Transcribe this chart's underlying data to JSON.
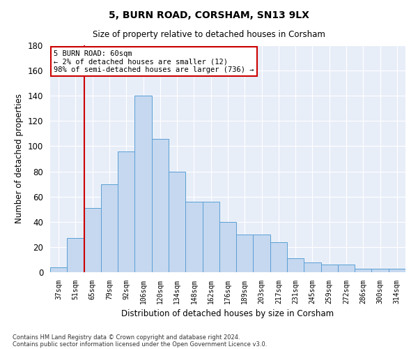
{
  "title1": "5, BURN ROAD, CORSHAM, SN13 9LX",
  "title2": "Size of property relative to detached houses in Corsham",
  "xlabel": "Distribution of detached houses by size in Corsham",
  "ylabel": "Number of detached properties",
  "categories": [
    "37sqm",
    "51sqm",
    "65sqm",
    "79sqm",
    "92sqm",
    "106sqm",
    "120sqm",
    "134sqm",
    "148sqm",
    "162sqm",
    "176sqm",
    "189sqm",
    "203sqm",
    "217sqm",
    "231sqm",
    "245sqm",
    "259sqm",
    "272sqm",
    "286sqm",
    "300sqm",
    "314sqm"
  ],
  "values": [
    4,
    27,
    51,
    70,
    96,
    140,
    106,
    80,
    56,
    56,
    40,
    30,
    30,
    24,
    11,
    8,
    6,
    6,
    3,
    3,
    3
  ],
  "bar_color": "#c5d8f0",
  "bar_edge_color": "#5a9fd4",
  "annotation_box_color": "#ffffff",
  "annotation_border_color": "#cc0000",
  "red_line_x": 1.5,
  "annotation_text_line1": "5 BURN ROAD: 60sqm",
  "annotation_text_line2": "← 2% of detached houses are smaller (12)",
  "annotation_text_line3": "98% of semi-detached houses are larger (736) →",
  "ylim": [
    0,
    180
  ],
  "yticks": [
    0,
    20,
    40,
    60,
    80,
    100,
    120,
    140,
    160,
    180
  ],
  "footer_line1": "Contains HM Land Registry data © Crown copyright and database right 2024.",
  "footer_line2": "Contains public sector information licensed under the Open Government Licence v3.0.",
  "background_color": "#e8eef8"
}
